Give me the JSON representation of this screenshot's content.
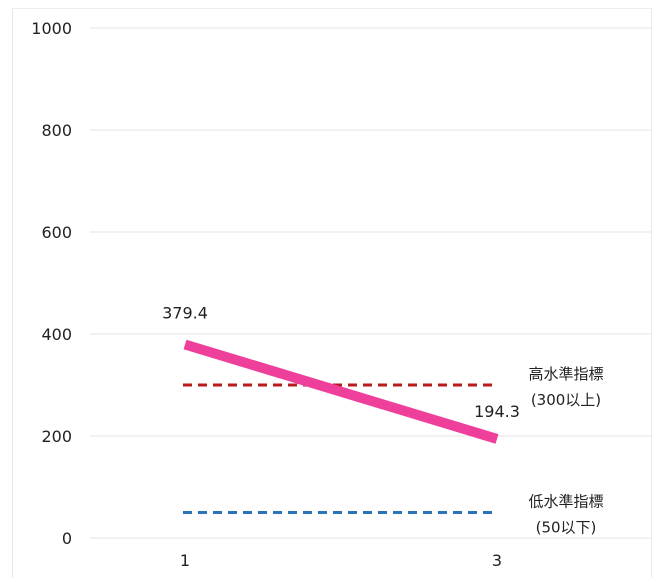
{
  "chart_data": {
    "type": "line",
    "title": "",
    "xlabel": "",
    "ylabel": "",
    "x": [
      "1",
      "3"
    ],
    "ylim": [
      0,
      1000
    ],
    "yticks": [
      0,
      200,
      400,
      600,
      800,
      1000
    ],
    "grid": true,
    "series": [
      {
        "values": [
          379.4,
          194.3
        ],
        "labels": [
          "379.4",
          "194.3"
        ],
        "color": "#ee3f9b"
      }
    ],
    "reference_lines": [
      {
        "value": 300,
        "label_line1": "高水準指標",
        "label_line2": "(300以上)",
        "color": "#b81c1c",
        "style": "dashed"
      },
      {
        "value": 50,
        "label_line1": "低水準指標",
        "label_line2": "(50以下)",
        "color": "#2a74b8",
        "style": "dashed"
      }
    ]
  }
}
